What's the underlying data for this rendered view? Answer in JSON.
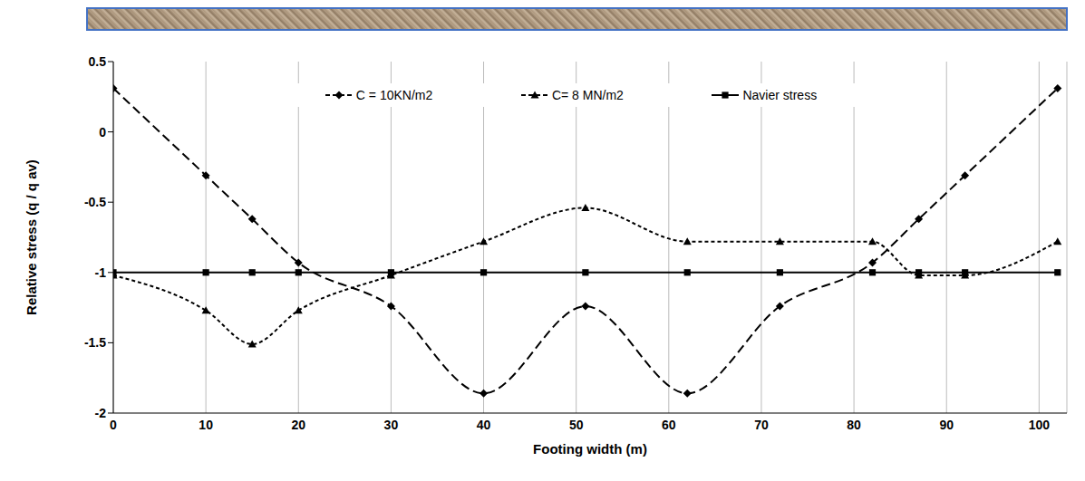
{
  "chart_data": {
    "type": "line",
    "x_label": "Footing width (m)",
    "y_label": "Relative stress (q / q av)",
    "x": [
      0,
      10,
      15,
      20,
      30,
      40,
      51,
      62,
      72,
      82,
      87,
      92,
      102
    ],
    "series": [
      {
        "name": "C = 10KN/m2",
        "color": "#000000",
        "marker": "diamond",
        "line_style": "dashed",
        "values": [
          0.31,
          -0.31,
          -0.62,
          -0.93,
          -1.24,
          -1.86,
          -1.24,
          -1.86,
          -1.24,
          -0.93,
          -0.62,
          -0.31,
          0.31
        ]
      },
      {
        "name": "C= 8 MN/m2",
        "color": "#000000",
        "marker": "triangle",
        "line_style": "dotted",
        "values": [
          -1.02,
          -1.27,
          -1.51,
          -1.27,
          -1.02,
          -0.78,
          -0.54,
          -0.78,
          -0.78,
          -0.78,
          -1.02,
          -1.02,
          -0.78
        ]
      },
      {
        "name": "Navier stress",
        "color": "#000000",
        "marker": "square",
        "line_style": "solid",
        "values": [
          -1,
          -1,
          -1,
          -1,
          -1,
          -1,
          -1,
          -1,
          -1,
          -1,
          -1,
          -1,
          -1
        ]
      }
    ],
    "xlim": [
      0,
      103
    ],
    "xticks": [
      0,
      10,
      20,
      30,
      40,
      50,
      60,
      70,
      80,
      90,
      100
    ],
    "ylim": [
      -2,
      0.5
    ],
    "yticks": [
      -2,
      -1.5,
      -1,
      -0.5,
      0,
      0.5
    ],
    "grid": "x",
    "legend": "top"
  }
}
